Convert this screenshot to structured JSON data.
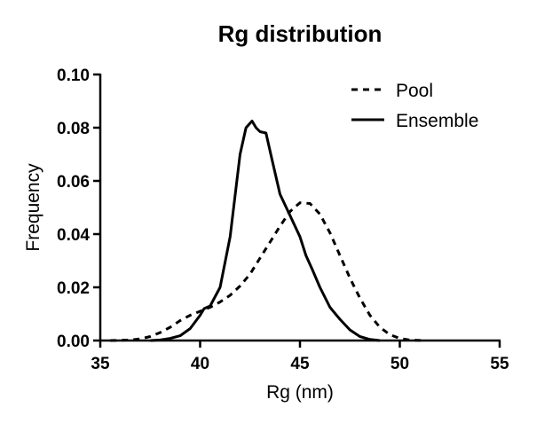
{
  "chart_data": {
    "type": "line",
    "title": "Rg distribution",
    "xlabel": "Rg (nm)",
    "ylabel": "Frequency",
    "xlim": [
      35,
      55
    ],
    "ylim": [
      0,
      0.1
    ],
    "xticks": [
      "35",
      "40",
      "45",
      "50",
      "55"
    ],
    "yticks": [
      "0.00",
      "0.02",
      "0.04",
      "0.06",
      "0.08",
      "0.10"
    ],
    "legend_position": "top-right",
    "grid": false,
    "series": [
      {
        "name": "Pool",
        "style": "dashed",
        "color": "#000000",
        "x": [
          35.5,
          36.5,
          37.0,
          37.5,
          38.0,
          38.5,
          39.0,
          39.5,
          40.0,
          40.5,
          41.0,
          41.5,
          42.0,
          42.5,
          43.0,
          43.5,
          44.0,
          44.5,
          45.0,
          45.5,
          46.0,
          46.5,
          47.0,
          47.5,
          48.0,
          48.5,
          49.0,
          49.5,
          50.0,
          50.5,
          51.2
        ],
        "y": [
          0.0,
          0.0002,
          0.0006,
          0.0015,
          0.003,
          0.005,
          0.0075,
          0.0095,
          0.011,
          0.0125,
          0.0145,
          0.017,
          0.0205,
          0.025,
          0.031,
          0.037,
          0.043,
          0.0485,
          0.0518,
          0.0515,
          0.0475,
          0.0405,
          0.032,
          0.0235,
          0.016,
          0.0095,
          0.005,
          0.0022,
          0.0008,
          0.0002,
          0.0
        ]
      },
      {
        "name": "Ensemble",
        "style": "solid",
        "color": "#000000",
        "x": [
          37.5,
          38.0,
          38.5,
          39.0,
          39.5,
          40.0,
          40.2,
          40.5,
          41.0,
          41.5,
          42.0,
          42.3,
          42.6,
          42.8,
          43.0,
          43.3,
          43.6,
          44.0,
          44.5,
          45.0,
          45.3,
          45.6,
          46.0,
          46.5,
          47.0,
          47.5,
          48.0,
          48.5,
          49.0
        ],
        "y": [
          0.0,
          0.0002,
          0.0008,
          0.0018,
          0.0045,
          0.0095,
          0.012,
          0.013,
          0.02,
          0.039,
          0.07,
          0.08,
          0.0825,
          0.08,
          0.0785,
          0.078,
          0.068,
          0.055,
          0.047,
          0.039,
          0.032,
          0.027,
          0.02,
          0.0125,
          0.008,
          0.004,
          0.0015,
          0.0004,
          0.0
        ]
      }
    ]
  }
}
